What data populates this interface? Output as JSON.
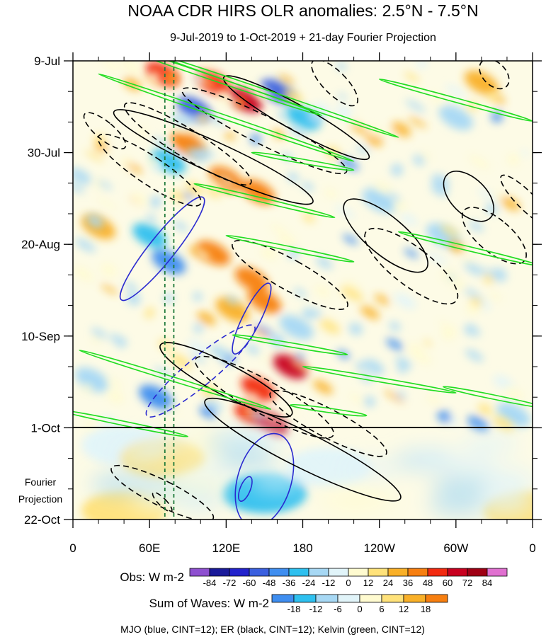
{
  "chart_data": {
    "type": "heatmap",
    "title": "NOAA CDR HIRS OLR anomalies: 2.5°N - 7.5°N",
    "subtitle": "9-Jul-2019 to 1-Oct-2019 + 21-day Fourier Projection",
    "x_ticks": [
      "0",
      "60E",
      "120E",
      "180",
      "120W",
      "60W",
      "0"
    ],
    "x_range_deg_east": [
      0,
      360
    ],
    "y_ticks": [
      "9-Jul",
      "30-Jul",
      "20-Aug",
      "10-Sep",
      "1-Oct",
      "22-Oct"
    ],
    "y_tick_dates": [
      "2019-07-09",
      "2019-07-30",
      "2019-08-20",
      "2019-09-10",
      "2019-10-01",
      "2019-10-22"
    ],
    "observation_end_date": "2019-10-01",
    "projection_label_lines": [
      "Fourier",
      "Projection"
    ],
    "obs_colorbar": {
      "label": "Obs: W m-2",
      "levels": [
        -84,
        -72,
        -60,
        -48,
        -36,
        -24,
        -12,
        0,
        12,
        24,
        36,
        48,
        60,
        72,
        84
      ],
      "colors": [
        "#8e4fd0",
        "#1a1a9a",
        "#2222cc",
        "#3a5fdf",
        "#3f8ef0",
        "#2ec0ef",
        "#a7d8f4",
        "#e1f4f9",
        "#fffbd0",
        "#ffe27a",
        "#f9b028",
        "#f77f10",
        "#f22a10",
        "#c8001f",
        "#9f0014",
        "#e070d0"
      ]
    },
    "waves_colorbar": {
      "label": "Sum of Waves: W m-2",
      "levels": [
        -18,
        -12,
        -6,
        0,
        6,
        12,
        18
      ],
      "colors": [
        "#3f8ef0",
        "#2ec0ef",
        "#a7d8f4",
        "#e1f4f9",
        "#fffbd0",
        "#ffe27a",
        "#f9b028",
        "#f77f10"
      ]
    },
    "footer": "MJO (blue, CINT=12); ER (black, CINT=12); Kelvin (green, CINT=12)",
    "reference_longitudes_deg_east": [
      72,
      79
    ],
    "reference_line_color": "#1f7a3a",
    "contour_colors": {
      "mjo": "#2a2ad0",
      "er": "#000000",
      "kelvin": "#22dd22"
    },
    "field_anomalies": [
      {
        "lon": 70,
        "date": "2019-07-12",
        "value": 48
      },
      {
        "lon": 95,
        "date": "2019-07-20",
        "value": -60
      },
      {
        "lon": 110,
        "date": "2019-07-14",
        "value": 48
      },
      {
        "lon": 135,
        "date": "2019-07-18",
        "value": 60
      },
      {
        "lon": 160,
        "date": "2019-07-16",
        "value": -60
      },
      {
        "lon": 180,
        "date": "2019-07-22",
        "value": -36
      },
      {
        "lon": 90,
        "date": "2019-07-28",
        "value": 36
      },
      {
        "lon": 75,
        "date": "2019-08-01",
        "value": -36
      },
      {
        "lon": 120,
        "date": "2019-08-05",
        "value": 36
      },
      {
        "lon": 145,
        "date": "2019-08-08",
        "value": 36
      },
      {
        "lon": 60,
        "date": "2019-08-18",
        "value": -36
      },
      {
        "lon": 75,
        "date": "2019-08-24",
        "value": -48
      },
      {
        "lon": 110,
        "date": "2019-08-22",
        "value": 36
      },
      {
        "lon": 140,
        "date": "2019-08-28",
        "value": 36
      },
      {
        "lon": 150,
        "date": "2019-09-02",
        "value": 36
      },
      {
        "lon": 125,
        "date": "2019-09-04",
        "value": 24
      },
      {
        "lon": 175,
        "date": "2019-09-08",
        "value": -24
      },
      {
        "lon": 170,
        "date": "2019-09-17",
        "value": 60
      },
      {
        "lon": 145,
        "date": "2019-09-22",
        "value": 48
      },
      {
        "lon": 140,
        "date": "2019-09-28",
        "value": 48
      },
      {
        "lon": 65,
        "date": "2019-09-24",
        "value": -48
      },
      {
        "lon": 155,
        "date": "2019-09-30",
        "value": 60
      },
      {
        "lon": 240,
        "date": "2019-08-10",
        "value": -24
      },
      {
        "lon": 290,
        "date": "2019-08-18",
        "value": -24
      },
      {
        "lon": 300,
        "date": "2019-07-22",
        "value": -24
      },
      {
        "lon": 320,
        "date": "2019-07-14",
        "value": 24
      },
      {
        "lon": 20,
        "date": "2019-08-16",
        "value": 24
      },
      {
        "lon": 15,
        "date": "2019-09-20",
        "value": -24
      },
      {
        "lon": 345,
        "date": "2019-09-28",
        "value": -24
      },
      {
        "lon": 150,
        "date": "2019-10-16",
        "value": -30
      },
      {
        "lon": 40,
        "date": "2019-10-05",
        "value": -12
      },
      {
        "lon": 200,
        "date": "2019-10-10",
        "value": -12
      },
      {
        "lon": 40,
        "date": "2019-10-20",
        "value": 12
      },
      {
        "lon": 355,
        "date": "2019-10-20",
        "value": 12
      },
      {
        "lon": 70,
        "date": "2019-10-08",
        "value": 12
      }
    ],
    "mjo_contours": [
      {
        "lon": 70,
        "date": "2019-08-21",
        "len_days": 30,
        "width_deg": 20,
        "slope": 0.8,
        "sign": 1
      },
      {
        "lon": 140,
        "date": "2019-09-06",
        "len_days": 18,
        "width_deg": 14,
        "slope": 0.5,
        "sign": 1
      },
      {
        "lon": 150,
        "date": "2019-10-13",
        "len_days": 22,
        "width_deg": 42,
        "slope": 0.3,
        "sign": 1
      },
      {
        "lon": 135,
        "date": "2019-10-15",
        "len_days": 6,
        "width_deg": 8,
        "slope": 0.4,
        "sign": 1
      },
      {
        "lon": 100,
        "date": "2019-09-18",
        "len_days": 32,
        "width_deg": 22,
        "slope": 1.2,
        "sign": -1
      }
    ],
    "er_contours": [
      {
        "lon": 90,
        "date": "2019-07-28",
        "len_days": 34,
        "width_deg": 22,
        "slope": -1.6,
        "sign": -1
      },
      {
        "lon": 110,
        "date": "2019-07-31",
        "len_days": 50,
        "width_deg": 24,
        "slope": -2.2,
        "sign": 1
      },
      {
        "lon": 150,
        "date": "2019-07-25",
        "len_days": 42,
        "width_deg": 22,
        "slope": -2.0,
        "sign": -1
      },
      {
        "lon": 175,
        "date": "2019-07-22",
        "len_days": 38,
        "width_deg": 20,
        "slope": -1.8,
        "sign": 1
      },
      {
        "lon": 205,
        "date": "2019-07-14",
        "len_days": 14,
        "width_deg": 18,
        "slope": -1.0,
        "sign": -1
      },
      {
        "lon": 60,
        "date": "2019-08-03",
        "len_days": 28,
        "width_deg": 22,
        "slope": -1.5,
        "sign": -1
      },
      {
        "lon": 170,
        "date": "2019-08-27",
        "len_days": 30,
        "width_deg": 24,
        "slope": -1.8,
        "sign": -1
      },
      {
        "lon": 150,
        "date": "2019-09-24",
        "len_days": 36,
        "width_deg": 26,
        "slope": -1.8,
        "sign": -1
      },
      {
        "lon": 120,
        "date": "2019-09-20",
        "len_days": 34,
        "width_deg": 24,
        "slope": -1.9,
        "sign": 1
      },
      {
        "lon": 180,
        "date": "2019-10-06",
        "len_days": 50,
        "width_deg": 28,
        "slope": -2.0,
        "sign": 1
      },
      {
        "lon": 200,
        "date": "2019-09-30",
        "len_days": 30,
        "width_deg": 22,
        "slope": -1.9,
        "sign": -1
      },
      {
        "lon": 245,
        "date": "2019-08-18",
        "len_days": 24,
        "width_deg": 30,
        "slope": -1.2,
        "sign": 1
      },
      {
        "lon": 265,
        "date": "2019-08-25",
        "len_days": 26,
        "width_deg": 30,
        "slope": -1.3,
        "sign": -1
      },
      {
        "lon": 310,
        "date": "2019-08-09",
        "len_days": 14,
        "width_deg": 28,
        "slope": -1.0,
        "sign": 1
      },
      {
        "lon": 330,
        "date": "2019-08-18",
        "len_days": 18,
        "width_deg": 26,
        "slope": -1.2,
        "sign": -1
      },
      {
        "lon": 355,
        "date": "2019-08-10",
        "len_days": 16,
        "width_deg": 14,
        "slope": -1.0,
        "sign": -1
      },
      {
        "lon": 330,
        "date": "2019-07-12",
        "len_days": 8,
        "width_deg": 18,
        "slope": -1.0,
        "sign": -1
      },
      {
        "lon": 25,
        "date": "2019-07-25",
        "len_days": 12,
        "width_deg": 14,
        "slope": -1.2,
        "sign": -1
      },
      {
        "lon": 70,
        "date": "2019-10-16",
        "len_days": 26,
        "width_deg": 20,
        "slope": -2.0,
        "sign": -1
      },
      {
        "lon": 70,
        "date": "2019-10-18",
        "len_days": 6,
        "width_deg": 6,
        "slope": -1.0,
        "sign": -1
      }
    ],
    "kelvin_contours": [
      {
        "lon": 100,
        "date": "2019-07-12",
        "len_deg": 190,
        "slope_days_per_deg": 0.1,
        "sign": 1
      },
      {
        "lon": 160,
        "date": "2019-07-17",
        "len_deg": 190,
        "slope_days_per_deg": 0.1,
        "sign": 1
      },
      {
        "lon": 120,
        "date": "2019-07-22",
        "len_deg": 200,
        "slope_days_per_deg": 0.1,
        "sign": 1
      },
      {
        "lon": 300,
        "date": "2019-07-18",
        "len_deg": 120,
        "slope_days_per_deg": 0.08,
        "sign": 1
      },
      {
        "lon": 180,
        "date": "2019-08-01",
        "len_deg": 80,
        "slope_days_per_deg": 0.05,
        "sign": 1
      },
      {
        "lon": 150,
        "date": "2019-08-10",
        "len_deg": 110,
        "slope_days_per_deg": 0.07,
        "sign": 1
      },
      {
        "lon": 310,
        "date": "2019-08-21",
        "len_deg": 110,
        "slope_days_per_deg": 0.07,
        "sign": 1
      },
      {
        "lon": 170,
        "date": "2019-08-21",
        "len_deg": 100,
        "slope_days_per_deg": 0.06,
        "sign": 1
      },
      {
        "lon": 170,
        "date": "2019-09-12",
        "len_deg": 90,
        "slope_days_per_deg": 0.05,
        "sign": 1
      },
      {
        "lon": 80,
        "date": "2019-09-20",
        "len_deg": 150,
        "slope_days_per_deg": 0.09,
        "sign": 1
      },
      {
        "lon": 40,
        "date": "2019-09-30",
        "len_deg": 100,
        "slope_days_per_deg": 0.06,
        "sign": 1
      },
      {
        "lon": 330,
        "date": "2019-09-24",
        "len_deg": 80,
        "slope_days_per_deg": 0.06,
        "sign": 1
      },
      {
        "lon": 240,
        "date": "2019-09-20",
        "len_deg": 120,
        "slope_days_per_deg": 0.05,
        "sign": 1
      },
      {
        "lon": 200,
        "date": "2019-09-27",
        "len_deg": 60,
        "slope_days_per_deg": 0.04,
        "sign": 1
      }
    ]
  }
}
